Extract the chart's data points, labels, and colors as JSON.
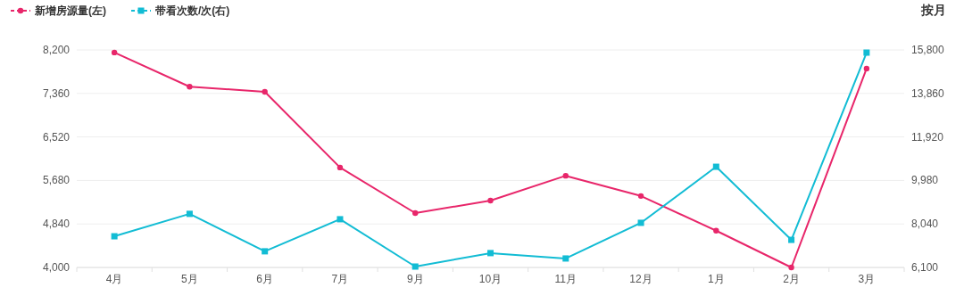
{
  "chart_data": {
    "type": "line",
    "categories": [
      "4月",
      "5月",
      "6月",
      "7月",
      "9月",
      "10月",
      "11月",
      "12月",
      "1月",
      "2月",
      "3月"
    ],
    "series": [
      {
        "name": "新增房源量(左)",
        "color": "#e8266a",
        "marker": "circle",
        "values": [
          8150,
          7490,
          7390,
          5930,
          5050,
          5290,
          5770,
          5380,
          4710,
          4000,
          7840
        ]
      },
      {
        "name": "带看次数/次(右)",
        "color": "#12bcd4",
        "marker": "square",
        "axis": "y2",
        "values": [
          7490,
          8490,
          6820,
          8250,
          6140,
          6740,
          6500,
          8090,
          10590,
          7330,
          15680
        ]
      }
    ],
    "ylim": [
      4000,
      8200
    ],
    "yticks": [
      {
        "value": 4000,
        "label": "4,000"
      },
      {
        "value": 4840,
        "label": "4,840"
      },
      {
        "value": 5680,
        "label": "5,680"
      },
      {
        "value": 6520,
        "label": "6,520"
      },
      {
        "value": 7360,
        "label": "7,360"
      },
      {
        "value": 8200,
        "label": "8,200"
      }
    ],
    "y2lim": [
      6100,
      15800
    ],
    "y2ticks": [
      {
        "value": 6100,
        "label": "6,100"
      },
      {
        "value": 8040,
        "label": "8,040"
      },
      {
        "value": 9980,
        "label": "9,980"
      },
      {
        "value": 11920,
        "label": "11,920"
      },
      {
        "value": 13860,
        "label": "13,860"
      },
      {
        "value": 15800,
        "label": "15,800"
      }
    ],
    "grid": "y",
    "legend": "top left",
    "line_style": "solid",
    "annotations": [
      "按月"
    ]
  }
}
